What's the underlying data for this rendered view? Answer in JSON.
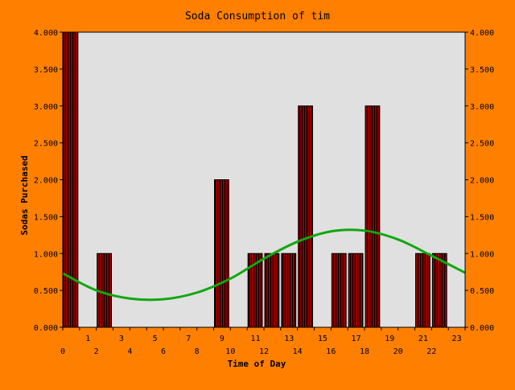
{
  "colors": {
    "background": "#ff8000",
    "plot_area": "#e0e0e0",
    "bar_fill": "#8b0000",
    "bar_stripe": "#000000",
    "trend_line": "#10a810",
    "text": "#000000"
  },
  "chart_data": {
    "type": "bar",
    "title": "Soda Consumption of tim",
    "xlabel": "Time of Day",
    "ylabel": "Sodas Purchased",
    "ylim": [
      0,
      4
    ],
    "y_ticks": [
      "0.000",
      "0.500",
      "1.000",
      "1.500",
      "2.000",
      "2.500",
      "3.000",
      "3.500",
      "4.000"
    ],
    "x_ticks_lower": [
      "0",
      "2",
      "4",
      "6",
      "8",
      "10",
      "12",
      "14",
      "16",
      "18",
      "20",
      "22"
    ],
    "x_ticks_upper": [
      "1",
      "3",
      "5",
      "7",
      "9",
      "11",
      "13",
      "15",
      "17",
      "19",
      "21",
      "23"
    ],
    "categories": [
      0,
      1,
      2,
      3,
      4,
      5,
      6,
      7,
      8,
      9,
      10,
      11,
      12,
      13,
      14,
      15,
      16,
      17,
      18,
      19,
      20,
      21,
      22,
      23
    ],
    "values": [
      4,
      0,
      1,
      0,
      0,
      0,
      0,
      0,
      0,
      2,
      0,
      1,
      1,
      1,
      3,
      0,
      1,
      1,
      3,
      0,
      0,
      1,
      1,
      0
    ],
    "trend": {
      "x": [
        0,
        2,
        4,
        6,
        8,
        10,
        12,
        14,
        16,
        18,
        20,
        22,
        24
      ],
      "y": [
        0.73,
        0.5,
        0.39,
        0.38,
        0.47,
        0.66,
        0.93,
        1.16,
        1.3,
        1.31,
        1.19,
        0.97,
        0.74
      ]
    },
    "grid": false,
    "legend": "none"
  }
}
